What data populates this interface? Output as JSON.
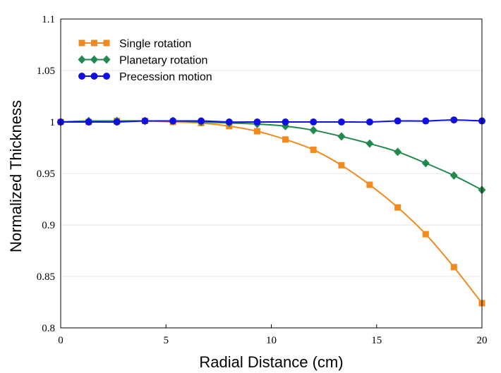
{
  "chart_data": {
    "type": "line",
    "xlabel": "Radial Distance (cm)",
    "ylabel": "Normalized Thickness",
    "xlim": [
      0,
      20
    ],
    "ylim": [
      0.8,
      1.1
    ],
    "x_ticks": [
      "0",
      "5",
      "10",
      "15",
      "20"
    ],
    "y_ticks": [
      "0.8",
      "0.85",
      "0.9",
      "0.95",
      "1",
      "1.05",
      "1.1"
    ],
    "grid": "horizontal",
    "legend_position": "top-left",
    "x": [
      0,
      1.33,
      2.67,
      4,
      5.33,
      6.67,
      8,
      9.33,
      10.67,
      12,
      13.33,
      14.67,
      16,
      17.33,
      18.67,
      20
    ],
    "series": [
      {
        "name": "Single rotation",
        "color": "#f28a1e",
        "marker": "square",
        "values": [
          1.0,
          1.0,
          1.001,
          1.001,
          1.0,
          0.999,
          0.996,
          0.991,
          0.983,
          0.973,
          0.958,
          0.939,
          0.917,
          0.891,
          0.859,
          0.824
        ]
      },
      {
        "name": "Planetary rotation",
        "color": "#1f8a4c",
        "marker": "diamond",
        "values": [
          1.0,
          1.001,
          1.001,
          1.001,
          1.001,
          1.0,
          0.999,
          0.998,
          0.996,
          0.992,
          0.986,
          0.979,
          0.971,
          0.96,
          0.948,
          0.934
        ]
      },
      {
        "name": "Precession motion",
        "color": "#1010e0",
        "marker": "circle",
        "values": [
          1.0,
          1.0,
          1.0,
          1.001,
          1.001,
          1.001,
          1.0,
          1.0,
          1.0,
          1.0,
          1.0,
          1.0,
          1.001,
          1.001,
          1.002,
          1.001
        ]
      }
    ]
  }
}
